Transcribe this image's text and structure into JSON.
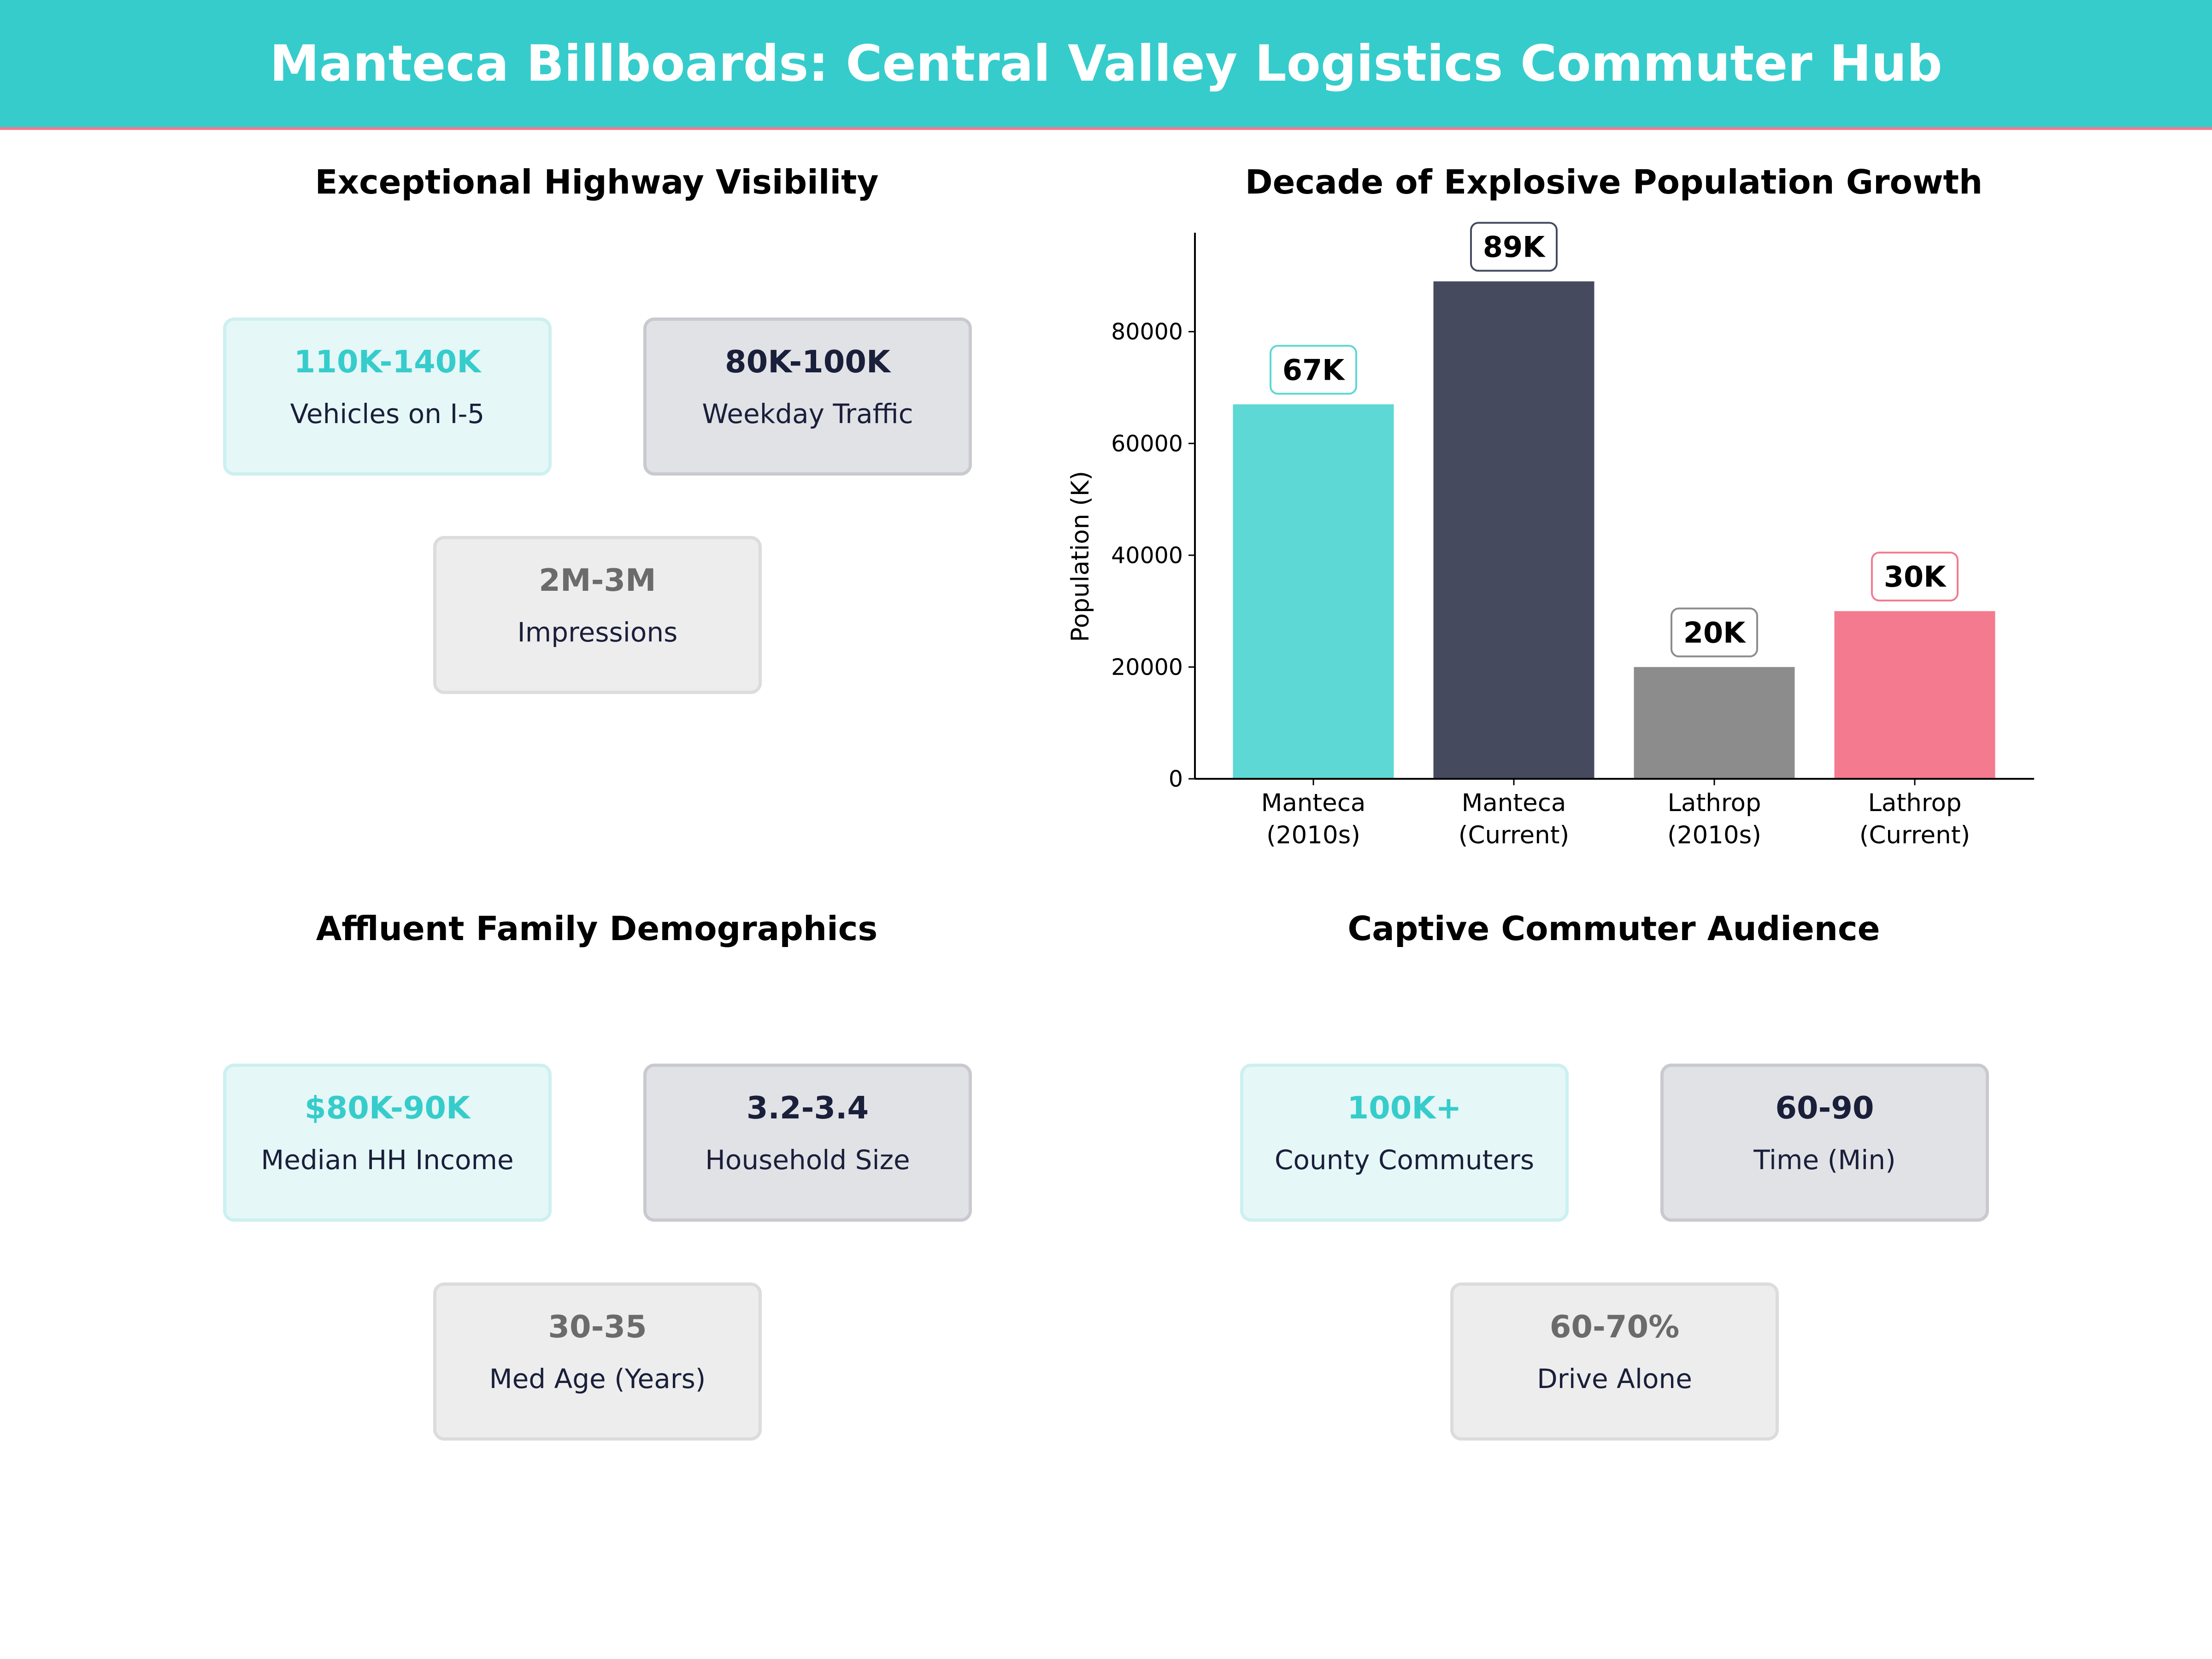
{
  "header": {
    "title": "Manteca Billboards: Central Valley Logistics Commuter Hub"
  },
  "colors": {
    "header": "#36cccc",
    "accent_line": "#f47a8f",
    "teal": "#36cccc",
    "navy": "#1a1f3a",
    "gray": "#6b6b6b"
  },
  "panels": {
    "visibility": {
      "title": "Exceptional Highway Visibility",
      "cards": [
        {
          "value": "110K-140K",
          "label": "Vehicles on I-5"
        },
        {
          "value": "80K-100K",
          "label": "Weekday Traffic"
        },
        {
          "value": "2M-3M",
          "label": "Impressions"
        }
      ]
    },
    "demographics": {
      "title": "Affluent Family Demographics",
      "cards": [
        {
          "value": "$80K-90K",
          "label": "Median HH Income"
        },
        {
          "value": "3.2-3.4",
          "label": "Household Size"
        },
        {
          "value": "30-35",
          "label": "Med Age (Years)"
        }
      ]
    },
    "commuters": {
      "title": "Captive Commuter Audience",
      "cards": [
        {
          "value": "100K+",
          "label": "County Commuters"
        },
        {
          "value": "60-90",
          "label": "Time (Min)"
        },
        {
          "value": "60-70%",
          "label": "Drive Alone"
        }
      ]
    }
  },
  "chart_data": {
    "type": "bar",
    "title": "Decade of Explosive Population Growth",
    "categories": [
      [
        "Manteca",
        "(2010s)"
      ],
      [
        "Manteca",
        "(Current)"
      ],
      [
        "Lathrop",
        "(2010s)"
      ],
      [
        "Lathrop",
        "(Current)"
      ]
    ],
    "values": [
      67000,
      89000,
      20000,
      30000
    ],
    "data_labels": [
      "67K",
      "89K",
      "20K",
      "30K"
    ],
    "colors": [
      "#5dd8d4",
      "#454a5e",
      "#8c8c8c",
      "#f47b8f"
    ],
    "xlabel": "",
    "ylabel": "Population (K)",
    "ylim": [
      0,
      97700
    ],
    "yticks": [
      0,
      20000,
      40000,
      60000,
      80000
    ],
    "grid": false
  }
}
